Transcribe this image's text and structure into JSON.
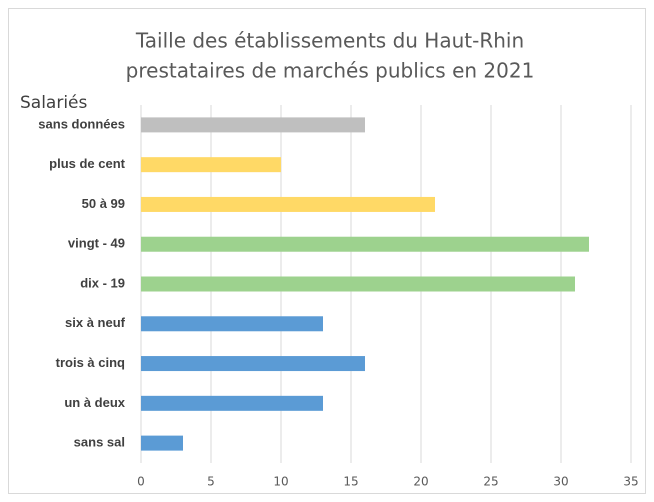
{
  "chart_data": {
    "type": "barh",
    "title": [
      "Taille des établissements du Haut-Rhin",
      "prestataires de marchés publics en 2021"
    ],
    "y_label": "Salariés",
    "categories": [
      "sans données",
      "plus de cent",
      "50 à 99",
      "vingt - 49",
      "dix - 19",
      "six à neuf",
      "trois à cinq",
      "un à deux",
      "sans sal"
    ],
    "values": [
      16,
      10,
      21,
      32,
      31,
      13,
      16,
      13,
      3
    ],
    "colors": [
      "#bfbfbf",
      "#ffd966",
      "#ffd966",
      "#9dd28e",
      "#9dd28e",
      "#5b9bd5",
      "#5b9bd5",
      "#5b9bd5",
      "#5b9bd5"
    ],
    "xlim": [
      0,
      35
    ],
    "xticks": [
      0,
      5,
      10,
      15,
      20,
      25,
      30,
      35
    ],
    "grid": true
  }
}
